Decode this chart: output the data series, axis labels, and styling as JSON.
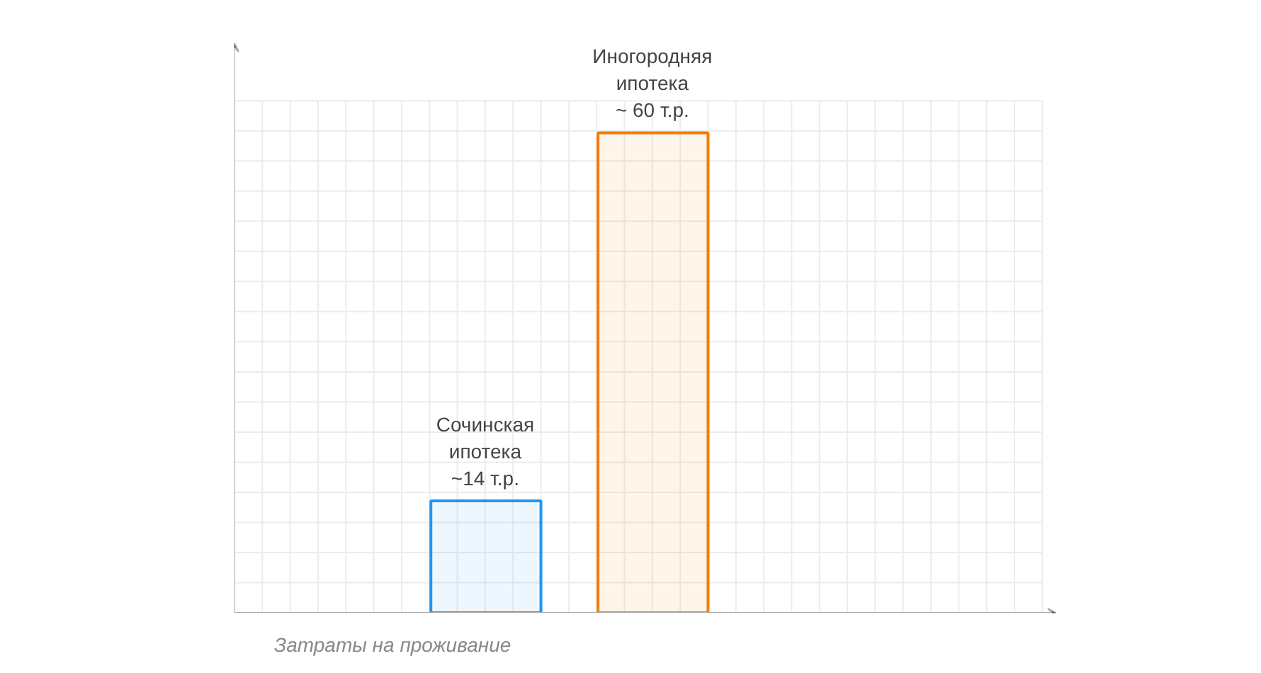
{
  "chart_data": {
    "type": "bar",
    "categories": [
      "Сочинская\nипотека",
      "Иногородняя\nипотека"
    ],
    "values": [
      14,
      60
    ],
    "value_labels": [
      "~14 т.р.",
      "~ 60 т.р."
    ],
    "colors": [
      "#2196f3",
      "#f57c00"
    ],
    "xlabel": "Затраты на проживание",
    "ylim": [
      0,
      64
    ],
    "grid": true
  }
}
